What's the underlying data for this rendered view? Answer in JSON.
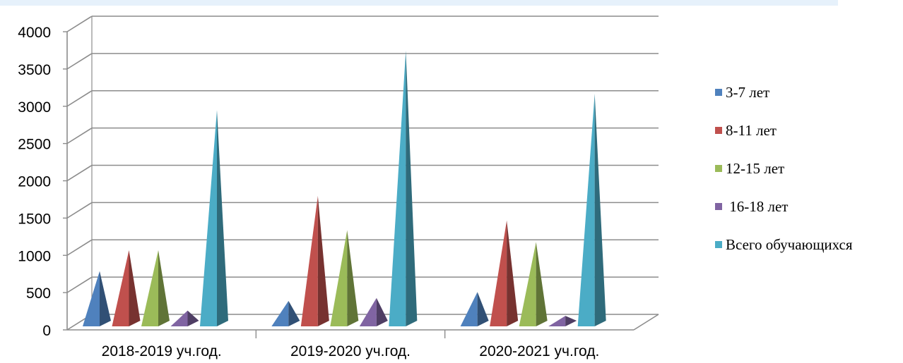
{
  "chart_data": {
    "type": "bar",
    "categories": [
      "2018-2019 уч.год.",
      "2019-2020 уч.год.",
      "2020-2021 уч.год."
    ],
    "series": [
      {
        "name": "3-7 лет",
        "color": "#4f81bd",
        "values": [
          760,
          360,
          480
        ]
      },
      {
        "name": "8-11 лет",
        "color": "#c0504d",
        "values": [
          1040,
          1770,
          1440
        ]
      },
      {
        "name": "12-15 лет",
        "color": "#9bbb59",
        "values": [
          1040,
          1310,
          1150
        ]
      },
      {
        "name": " 16-18 лет",
        "color": "#8064a2",
        "values": [
          230,
          400,
          160
        ]
      },
      {
        "name": "Всего обучающихся",
        "color": "#4bacc6",
        "values": [
          2920,
          3720,
          3140
        ]
      }
    ],
    "y_ticks": [
      "0",
      "500",
      "1000",
      "1500",
      "2000",
      "2500",
      "3000",
      "3500",
      "4000"
    ],
    "ylim": [
      0,
      4000
    ],
    "grid": true,
    "legend_position": "right",
    "style": "3d-cone"
  }
}
